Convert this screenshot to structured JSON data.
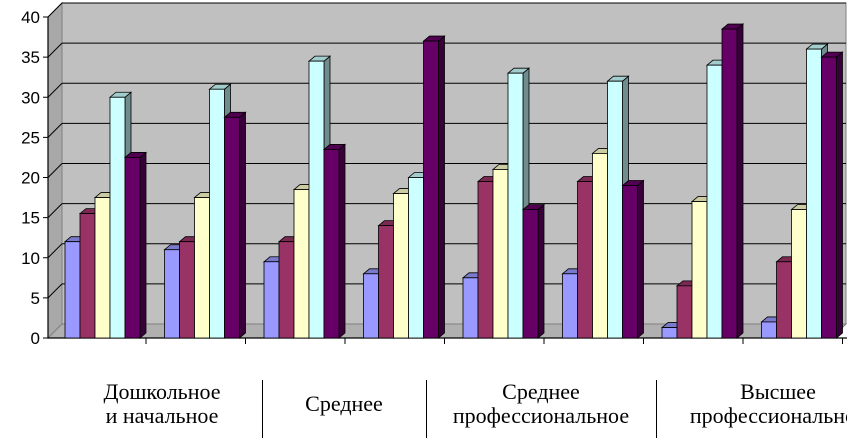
{
  "chart_data": {
    "type": "bar",
    "style": "3d-clustered-column",
    "ylim": [
      0,
      40
    ],
    "yticks": [
      "0",
      "5",
      "10",
      "15",
      "20",
      "25",
      "30",
      "35",
      "40"
    ],
    "grid": true,
    "series": [
      {
        "color": "#9999ff",
        "values": [
          12,
          11,
          9.5,
          8,
          7.5,
          8,
          1.3,
          2
        ]
      },
      {
        "color": "#993366",
        "values": [
          15.5,
          12,
          12,
          14,
          19.5,
          19.5,
          6.5,
          9.5
        ]
      },
      {
        "color": "#ffffcc",
        "values": [
          17.5,
          17.5,
          18.5,
          18,
          21,
          23,
          17,
          16
        ]
      },
      {
        "color": "#ccffff",
        "values": [
          30,
          31,
          34.5,
          20,
          33,
          32,
          34,
          36
        ]
      },
      {
        "color": "#660066",
        "values": [
          22.5,
          27.5,
          23.5,
          37,
          16,
          19,
          38.5,
          35
        ]
      }
    ],
    "group_labels": [
      {
        "text": "Дошкольное\nи начальное"
      },
      {
        "text": "Среднее"
      },
      {
        "text": "Среднее\nпрофессиональное"
      },
      {
        "text": "Высшее\nпрофессиональное"
      }
    ]
  }
}
